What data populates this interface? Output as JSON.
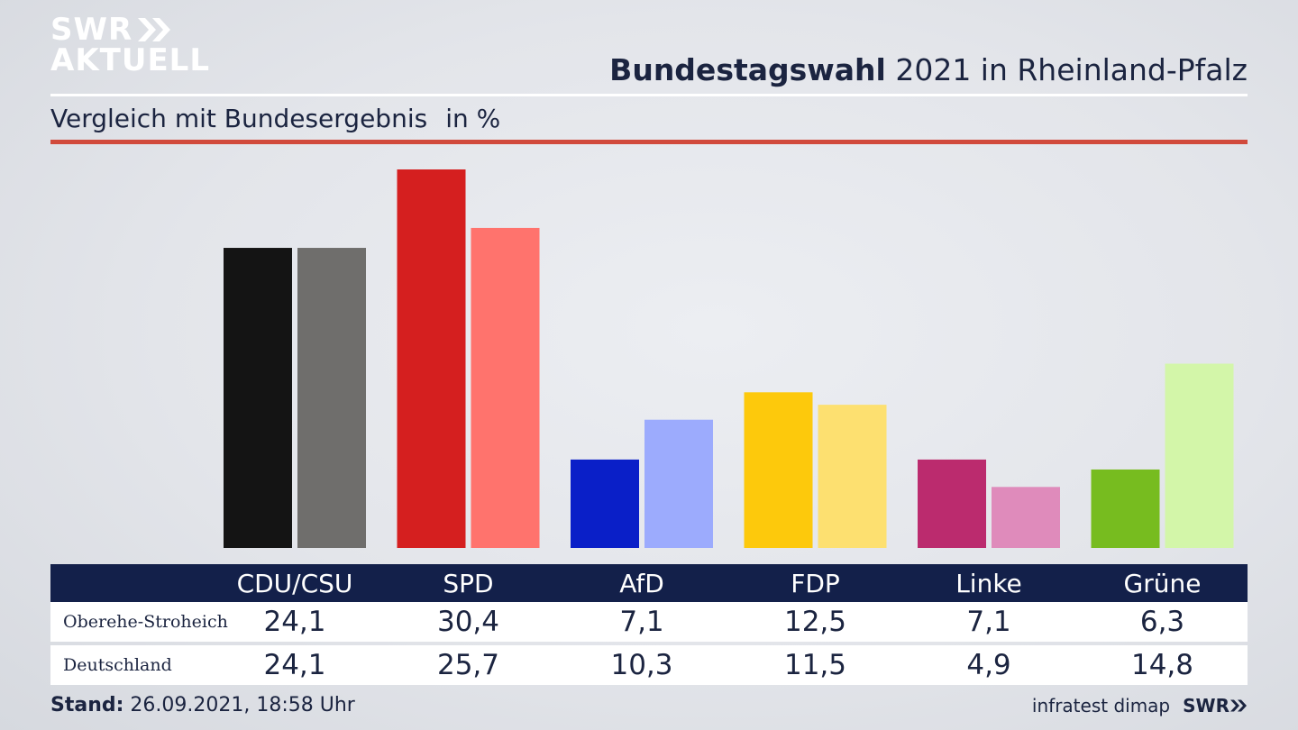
{
  "brand": {
    "line1": "SWR",
    "line2": "AKTUELL",
    "icon": "double-chevron-right-icon",
    "footer_logo": "SWR"
  },
  "header": {
    "title_bold": "Bundestagswahl",
    "title_rest": "2021 in Rheinland-Pfalz"
  },
  "subheader": {
    "text": "Vergleich mit Bundesergebnis",
    "unit": "in %"
  },
  "footer": {
    "stand_label": "Stand:",
    "stand_value": "26.09.2021, 18:58 Uhr",
    "source": "infratest dimap"
  },
  "chart_data": {
    "type": "bar",
    "categories": [
      "CDU/CSU",
      "SPD",
      "AfD",
      "FDP",
      "Linke",
      "Grüne"
    ],
    "series": [
      {
        "name": "Oberehe-Stroheich",
        "values": [
          24.1,
          30.4,
          7.1,
          12.5,
          7.1,
          6.3
        ],
        "display": [
          "24,1",
          "30,4",
          "7,1",
          "12,5",
          "7,1",
          "6,3"
        ],
        "colors": [
          "#141414",
          "#d51f1f",
          "#0a1fc8",
          "#fdc90c",
          "#bb2b6e",
          "#77bc1f"
        ]
      },
      {
        "name": "Deutschland",
        "values": [
          24.1,
          25.7,
          10.3,
          11.5,
          4.9,
          14.8
        ],
        "display": [
          "24,1",
          "25,7",
          "10,3",
          "11,5",
          "4,9",
          "14,8"
        ],
        "colors": [
          "#6f6e6c",
          "#ff736d",
          "#9cabfd",
          "#fde070",
          "#df8bbb",
          "#d3f6a9"
        ]
      }
    ],
    "ylim": [
      0,
      30.4
    ],
    "grid": false,
    "legend": "table-below"
  }
}
